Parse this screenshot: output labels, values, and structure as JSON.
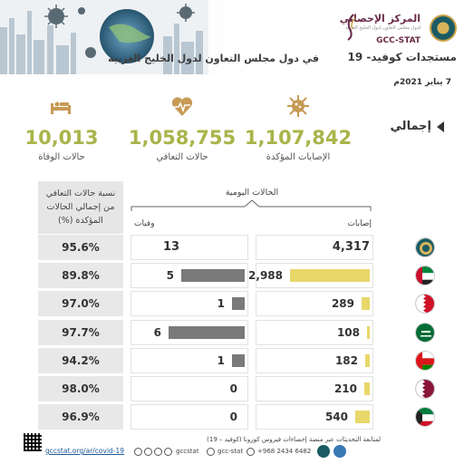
{
  "header": {
    "stat_name_ar": "المركز الإحصائي",
    "stat_sub_ar": "لدول مجلس التعاون لدول الخليج العربية",
    "stat_name_en": "GCC-STAT",
    "title_main": "مستجدات كوفيد- 19",
    "title_sub": "في دول مجلس التعاون لدول الخليج العربية",
    "date": "7 يناير 2021م"
  },
  "summary": {
    "total_label": "إجمالي",
    "confirmed": {
      "value": "1,107,842",
      "label": "الإصابات المؤكدة",
      "icon": "virus-icon"
    },
    "recovered": {
      "value": "1,058,755",
      "label": "حالات التعافي",
      "icon": "heart-icon"
    },
    "deaths": {
      "value": "10,013",
      "label": "حالات الوفاة",
      "icon": "bed-icon"
    }
  },
  "table": {
    "daily_label": "الحالات اليومية",
    "cases_col": "إصابات",
    "deaths_col": "وفيات",
    "rate_col": "نسبة حالات التعافي من إجمالي الحالات المؤكدة (%)",
    "max_cases": 4317,
    "max_deaths": 13,
    "rows": [
      {
        "country": "gcc",
        "cases": "4,317",
        "cases_num": 4317,
        "deaths": "13",
        "deaths_num": 13,
        "rate": "95.6%",
        "total": true
      },
      {
        "country": "uae",
        "cases": "2,988",
        "cases_num": 2988,
        "deaths": "5",
        "deaths_num": 5,
        "rate": "89.8%"
      },
      {
        "country": "bahrain",
        "cases": "289",
        "cases_num": 289,
        "deaths": "1",
        "deaths_num": 1,
        "rate": "97.0%"
      },
      {
        "country": "saudi",
        "cases": "108",
        "cases_num": 108,
        "deaths": "6",
        "deaths_num": 6,
        "rate": "97.7%"
      },
      {
        "country": "oman",
        "cases": "182",
        "cases_num": 182,
        "deaths": "1",
        "deaths_num": 1,
        "rate": "94.2%"
      },
      {
        "country": "qatar",
        "cases": "210",
        "cases_num": 210,
        "deaths": "0",
        "deaths_num": 0,
        "rate": "98.0%"
      },
      {
        "country": "kuwait",
        "cases": "540",
        "cases_num": 540,
        "deaths": "0",
        "deaths_num": 0,
        "rate": "96.9%"
      }
    ]
  },
  "footer": {
    "follow_text": "لمتابعة التحديثات عبر منصة إحصاءات فيروس كورونا (كوفيد – 19)",
    "link": "gccstat.org/ar/covid-19",
    "social": "gccstat",
    "email": "gcc-stat",
    "phone": "+968 2434 6482"
  },
  "colors": {
    "accent": "#a9b44a",
    "cases_bar": "#e8d76a",
    "deaths_bar": "#7a7a7a"
  }
}
